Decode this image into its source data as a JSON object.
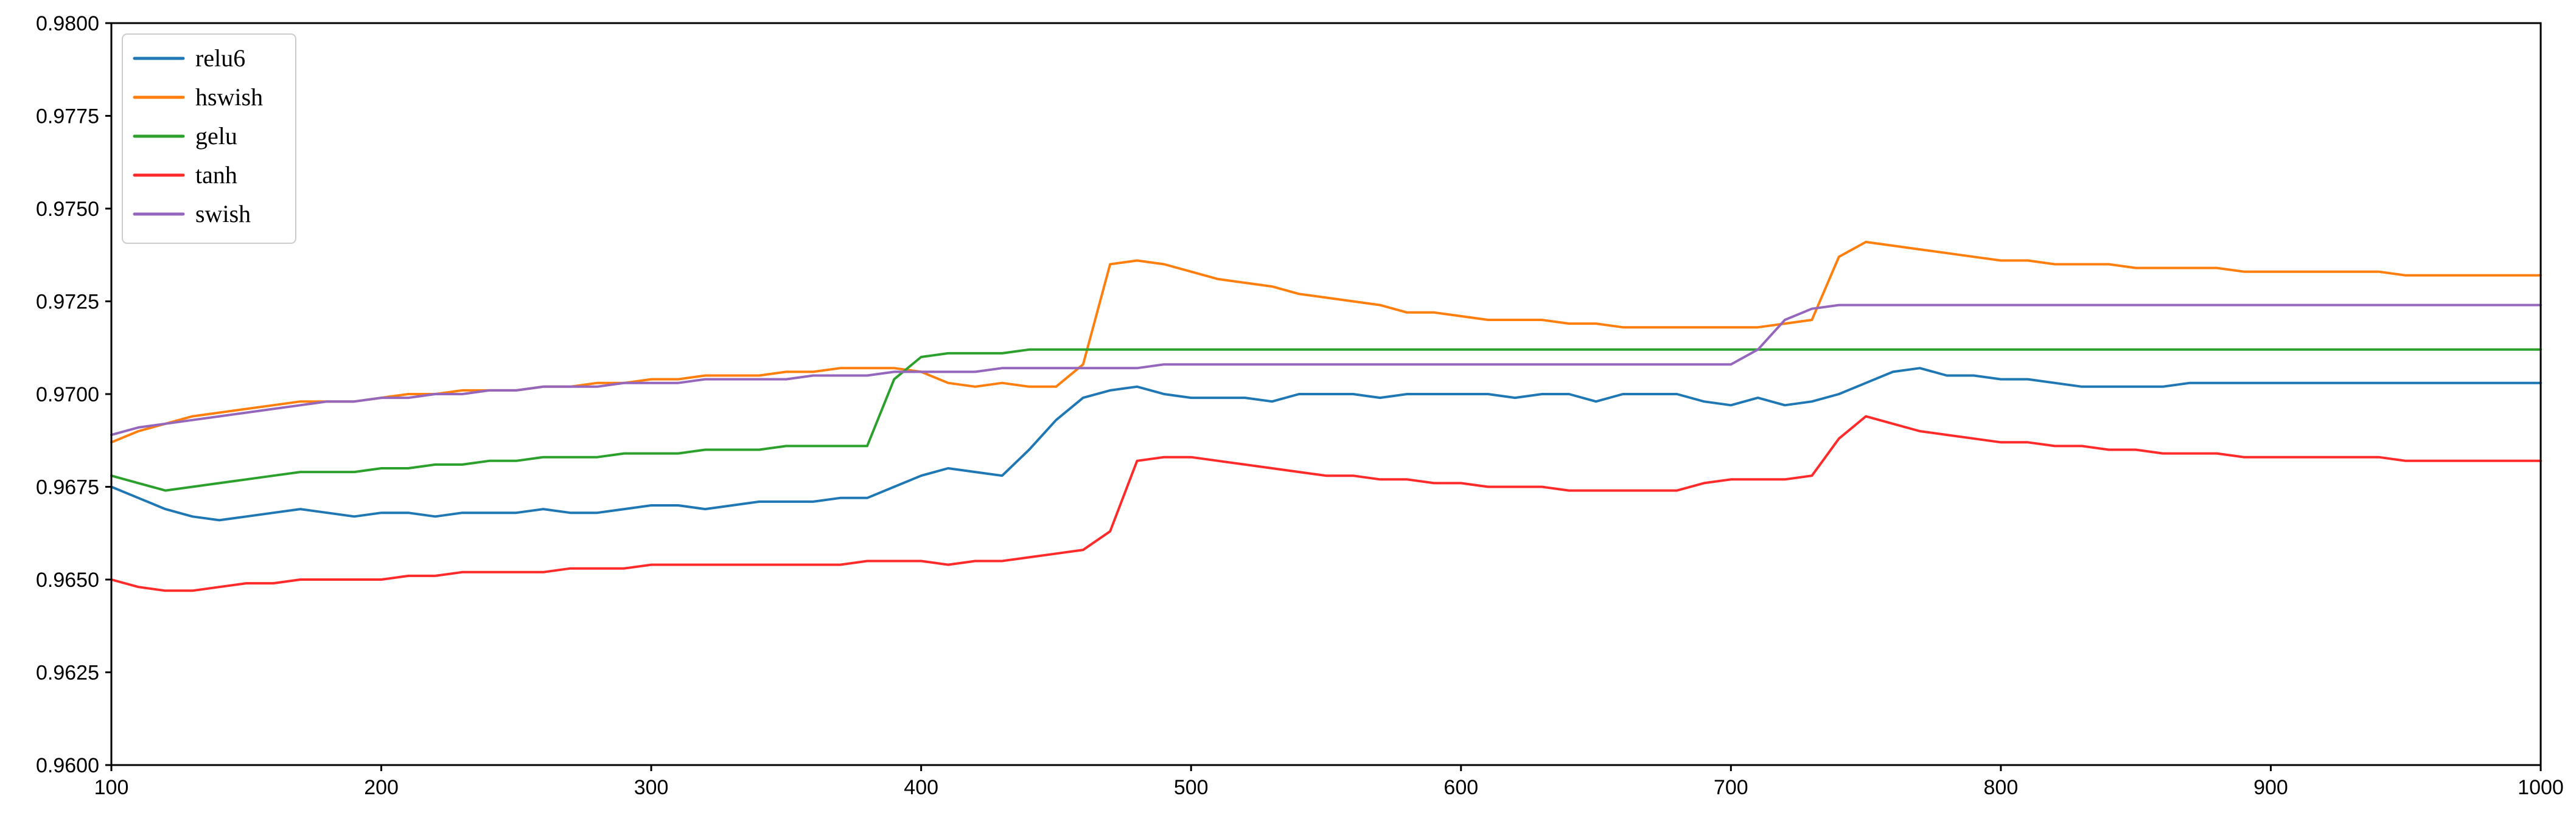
{
  "chart_data": {
    "type": "line",
    "title": "",
    "xlabel": "",
    "ylabel": "",
    "xlim": [
      100,
      1000
    ],
    "ylim": [
      0.96,
      0.98
    ],
    "x_ticks": [
      100,
      200,
      300,
      400,
      500,
      600,
      700,
      800,
      900,
      1000
    ],
    "x_tick_labels": [
      "100",
      "200",
      "300",
      "400",
      "500",
      "600",
      "700",
      "800",
      "900",
      "1000"
    ],
    "y_ticks": [
      0.96,
      0.9625,
      0.965,
      0.9675,
      0.97,
      0.9725,
      0.975,
      0.9775,
      0.98
    ],
    "y_tick_labels": [
      "0.9600",
      "0.9625",
      "0.9650",
      "0.9675",
      "0.9700",
      "0.9725",
      "0.9750",
      "0.9775",
      "0.9800"
    ],
    "grid": false,
    "legend_position": "top-left",
    "x_step": 10,
    "series": [
      {
        "name": "relu6",
        "color": "#1f77b4",
        "x": [
          100,
          110,
          120,
          130,
          140,
          150,
          160,
          170,
          180,
          190,
          200,
          210,
          220,
          230,
          240,
          250,
          260,
          270,
          280,
          290,
          300,
          310,
          320,
          330,
          340,
          350,
          360,
          370,
          380,
          390,
          400,
          410,
          420,
          430,
          440,
          450,
          460,
          470,
          480,
          490,
          500,
          510,
          520,
          530,
          540,
          550,
          560,
          570,
          580,
          590,
          600,
          610,
          620,
          630,
          640,
          650,
          660,
          670,
          680,
          690,
          700,
          710,
          720,
          730,
          740,
          750,
          760,
          770,
          780,
          790,
          800,
          810,
          820,
          830,
          840,
          850,
          860,
          870,
          880,
          890,
          900,
          910,
          920,
          930,
          940,
          950,
          960,
          970,
          980,
          990,
          1000
        ],
        "values": [
          0.9675,
          0.9672,
          0.9669,
          0.9667,
          0.9666,
          0.9667,
          0.9668,
          0.9669,
          0.9668,
          0.9667,
          0.9668,
          0.9668,
          0.9667,
          0.9668,
          0.9668,
          0.9668,
          0.9669,
          0.9668,
          0.9668,
          0.9669,
          0.967,
          0.967,
          0.9669,
          0.967,
          0.9671,
          0.9671,
          0.9671,
          0.9672,
          0.9672,
          0.9675,
          0.9678,
          0.968,
          0.9679,
          0.9678,
          0.9685,
          0.9693,
          0.9699,
          0.9701,
          0.9702,
          0.97,
          0.9699,
          0.9699,
          0.9699,
          0.9698,
          0.97,
          0.97,
          0.97,
          0.9699,
          0.97,
          0.97,
          0.97,
          0.97,
          0.9699,
          0.97,
          0.97,
          0.9698,
          0.97,
          0.97,
          0.97,
          0.9698,
          0.9697,
          0.9699,
          0.9697,
          0.9698,
          0.97,
          0.9703,
          0.9706,
          0.9707,
          0.9705,
          0.9705,
          0.9704,
          0.9704,
          0.9703,
          0.9702,
          0.9702,
          0.9702,
          0.9702,
          0.9703,
          0.9703,
          0.9703,
          0.9703,
          0.9703,
          0.9703,
          0.9703,
          0.9703,
          0.9703,
          0.9703,
          0.9703,
          0.9703,
          0.9703,
          0.9703
        ]
      },
      {
        "name": "hswish",
        "color": "#ff7f0e",
        "x": [
          100,
          110,
          120,
          130,
          140,
          150,
          160,
          170,
          180,
          190,
          200,
          210,
          220,
          230,
          240,
          250,
          260,
          270,
          280,
          290,
          300,
          310,
          320,
          330,
          340,
          350,
          360,
          370,
          380,
          390,
          400,
          410,
          420,
          430,
          440,
          450,
          460,
          470,
          480,
          490,
          500,
          510,
          520,
          530,
          540,
          550,
          560,
          570,
          580,
          590,
          600,
          610,
          620,
          630,
          640,
          650,
          660,
          670,
          680,
          690,
          700,
          710,
          720,
          730,
          740,
          750,
          760,
          770,
          780,
          790,
          800,
          810,
          820,
          830,
          840,
          850,
          860,
          870,
          880,
          890,
          900,
          910,
          920,
          930,
          940,
          950,
          960,
          970,
          980,
          990,
          1000
        ],
        "values": [
          0.9687,
          0.969,
          0.9692,
          0.9694,
          0.9695,
          0.9696,
          0.9697,
          0.9698,
          0.9698,
          0.9698,
          0.9699,
          0.97,
          0.97,
          0.9701,
          0.9701,
          0.9701,
          0.9702,
          0.9702,
          0.9703,
          0.9703,
          0.9704,
          0.9704,
          0.9705,
          0.9705,
          0.9705,
          0.9706,
          0.9706,
          0.9707,
          0.9707,
          0.9707,
          0.9706,
          0.9703,
          0.9702,
          0.9703,
          0.9702,
          0.9702,
          0.9708,
          0.9735,
          0.9736,
          0.9735,
          0.9733,
          0.9731,
          0.973,
          0.9729,
          0.9727,
          0.9726,
          0.9725,
          0.9724,
          0.9722,
          0.9722,
          0.9721,
          0.972,
          0.972,
          0.972,
          0.9719,
          0.9719,
          0.9718,
          0.9718,
          0.9718,
          0.9718,
          0.9718,
          0.9718,
          0.9719,
          0.972,
          0.9737,
          0.9741,
          0.974,
          0.9739,
          0.9738,
          0.9737,
          0.9736,
          0.9736,
          0.9735,
          0.9735,
          0.9735,
          0.9734,
          0.9734,
          0.9734,
          0.9734,
          0.9733,
          0.9733,
          0.9733,
          0.9733,
          0.9733,
          0.9733,
          0.9732,
          0.9732,
          0.9732,
          0.9732,
          0.9732,
          0.9732
        ]
      },
      {
        "name": "gelu",
        "color": "#2ca02c",
        "x": [
          100,
          110,
          120,
          130,
          140,
          150,
          160,
          170,
          180,
          190,
          200,
          210,
          220,
          230,
          240,
          250,
          260,
          270,
          280,
          290,
          300,
          310,
          320,
          330,
          340,
          350,
          360,
          370,
          380,
          390,
          400,
          410,
          420,
          430,
          440,
          450,
          460,
          470,
          480,
          490,
          500,
          510,
          520,
          530,
          540,
          550,
          560,
          570,
          580,
          590,
          600,
          610,
          620,
          630,
          640,
          650,
          660,
          670,
          680,
          690,
          700,
          710,
          720,
          730,
          740,
          750,
          760,
          770,
          780,
          790,
          800,
          810,
          820,
          830,
          840,
          850,
          860,
          870,
          880,
          890,
          900,
          910,
          920,
          930,
          940,
          950,
          960,
          970,
          980,
          990,
          1000
        ],
        "values": [
          0.9678,
          0.9676,
          0.9674,
          0.9675,
          0.9676,
          0.9677,
          0.9678,
          0.9679,
          0.9679,
          0.9679,
          0.968,
          0.968,
          0.9681,
          0.9681,
          0.9682,
          0.9682,
          0.9683,
          0.9683,
          0.9683,
          0.9684,
          0.9684,
          0.9684,
          0.9685,
          0.9685,
          0.9685,
          0.9686,
          0.9686,
          0.9686,
          0.9686,
          0.9704,
          0.971,
          0.9711,
          0.9711,
          0.9711,
          0.9712,
          0.9712,
          0.9712,
          0.9712,
          0.9712,
          0.9712,
          0.9712,
          0.9712,
          0.9712,
          0.9712,
          0.9712,
          0.9712,
          0.9712,
          0.9712,
          0.9712,
          0.9712,
          0.9712,
          0.9712,
          0.9712,
          0.9712,
          0.9712,
          0.9712,
          0.9712,
          0.9712,
          0.9712,
          0.9712,
          0.9712,
          0.9712,
          0.9712,
          0.9712,
          0.9712,
          0.9712,
          0.9712,
          0.9712,
          0.9712,
          0.9712,
          0.9712,
          0.9712,
          0.9712,
          0.9712,
          0.9712,
          0.9712,
          0.9712,
          0.9712,
          0.9712,
          0.9712,
          0.9712,
          0.9712,
          0.9712,
          0.9712,
          0.9712,
          0.9712,
          0.9712,
          0.9712,
          0.9712,
          0.9712,
          0.9712
        ]
      },
      {
        "name": "tanh",
        "color": "#ff2a2a",
        "x": [
          100,
          110,
          120,
          130,
          140,
          150,
          160,
          170,
          180,
          190,
          200,
          210,
          220,
          230,
          240,
          250,
          260,
          270,
          280,
          290,
          300,
          310,
          320,
          330,
          340,
          350,
          360,
          370,
          380,
          390,
          400,
          410,
          420,
          430,
          440,
          450,
          460,
          470,
          480,
          490,
          500,
          510,
          520,
          530,
          540,
          550,
          560,
          570,
          580,
          590,
          600,
          610,
          620,
          630,
          640,
          650,
          660,
          670,
          680,
          690,
          700,
          710,
          720,
          730,
          740,
          750,
          760,
          770,
          780,
          790,
          800,
          810,
          820,
          830,
          840,
          850,
          860,
          870,
          880,
          890,
          900,
          910,
          920,
          930,
          940,
          950,
          960,
          970,
          980,
          990,
          1000
        ],
        "values": [
          0.965,
          0.9648,
          0.9647,
          0.9647,
          0.9648,
          0.9649,
          0.9649,
          0.965,
          0.965,
          0.965,
          0.965,
          0.9651,
          0.9651,
          0.9652,
          0.9652,
          0.9652,
          0.9652,
          0.9653,
          0.9653,
          0.9653,
          0.9654,
          0.9654,
          0.9654,
          0.9654,
          0.9654,
          0.9654,
          0.9654,
          0.9654,
          0.9655,
          0.9655,
          0.9655,
          0.9654,
          0.9655,
          0.9655,
          0.9656,
          0.9657,
          0.9658,
          0.9663,
          0.9682,
          0.9683,
          0.9683,
          0.9682,
          0.9681,
          0.968,
          0.9679,
          0.9678,
          0.9678,
          0.9677,
          0.9677,
          0.9676,
          0.9676,
          0.9675,
          0.9675,
          0.9675,
          0.9674,
          0.9674,
          0.9674,
          0.9674,
          0.9674,
          0.9676,
          0.9677,
          0.9677,
          0.9677,
          0.9678,
          0.9688,
          0.9694,
          0.9692,
          0.969,
          0.9689,
          0.9688,
          0.9687,
          0.9687,
          0.9686,
          0.9686,
          0.9685,
          0.9685,
          0.9684,
          0.9684,
          0.9684,
          0.9683,
          0.9683,
          0.9683,
          0.9683,
          0.9683,
          0.9683,
          0.9682,
          0.9682,
          0.9682,
          0.9682,
          0.9682,
          0.9682
        ]
      },
      {
        "name": "swish",
        "color": "#9467bd",
        "x": [
          100,
          110,
          120,
          130,
          140,
          150,
          160,
          170,
          180,
          190,
          200,
          210,
          220,
          230,
          240,
          250,
          260,
          270,
          280,
          290,
          300,
          310,
          320,
          330,
          340,
          350,
          360,
          370,
          380,
          390,
          400,
          410,
          420,
          430,
          440,
          450,
          460,
          470,
          480,
          490,
          500,
          510,
          520,
          530,
          540,
          550,
          560,
          570,
          580,
          590,
          600,
          610,
          620,
          630,
          640,
          650,
          660,
          670,
          680,
          690,
          700,
          710,
          720,
          730,
          740,
          750,
          760,
          770,
          780,
          790,
          800,
          810,
          820,
          830,
          840,
          850,
          860,
          870,
          880,
          890,
          900,
          910,
          920,
          930,
          940,
          950,
          960,
          970,
          980,
          990,
          1000
        ],
        "values": [
          0.9689,
          0.9691,
          0.9692,
          0.9693,
          0.9694,
          0.9695,
          0.9696,
          0.9697,
          0.9698,
          0.9698,
          0.9699,
          0.9699,
          0.97,
          0.97,
          0.9701,
          0.9701,
          0.9702,
          0.9702,
          0.9702,
          0.9703,
          0.9703,
          0.9703,
          0.9704,
          0.9704,
          0.9704,
          0.9704,
          0.9705,
          0.9705,
          0.9705,
          0.9706,
          0.9706,
          0.9706,
          0.9706,
          0.9707,
          0.9707,
          0.9707,
          0.9707,
          0.9707,
          0.9707,
          0.9708,
          0.9708,
          0.9708,
          0.9708,
          0.9708,
          0.9708,
          0.9708,
          0.9708,
          0.9708,
          0.9708,
          0.9708,
          0.9708,
          0.9708,
          0.9708,
          0.9708,
          0.9708,
          0.9708,
          0.9708,
          0.9708,
          0.9708,
          0.9708,
          0.9708,
          0.9712,
          0.972,
          0.9723,
          0.9724,
          0.9724,
          0.9724,
          0.9724,
          0.9724,
          0.9724,
          0.9724,
          0.9724,
          0.9724,
          0.9724,
          0.9724,
          0.9724,
          0.9724,
          0.9724,
          0.9724,
          0.9724,
          0.9724,
          0.9724,
          0.9724,
          0.9724,
          0.9724,
          0.9724,
          0.9724,
          0.9724,
          0.9724,
          0.9724,
          0.9724
        ]
      }
    ]
  }
}
